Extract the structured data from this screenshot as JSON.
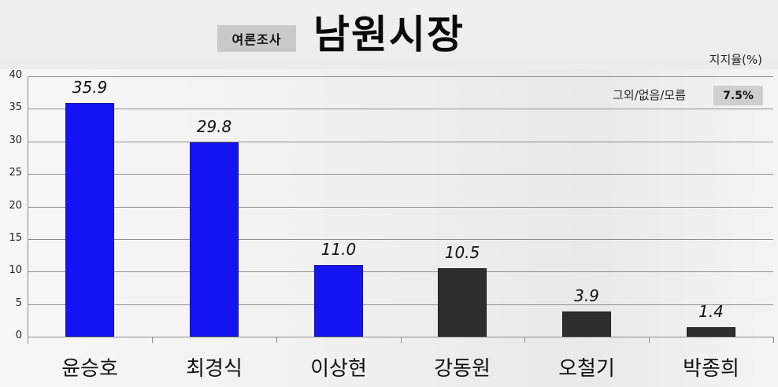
{
  "header": {
    "tag": "여론조사",
    "title": "남원시장"
  },
  "unit_label": "지지율(%)",
  "others": {
    "label": "그외/없음/모름",
    "value": "7.5%"
  },
  "colors": {
    "highlight_bar": "#1414f2",
    "other_bar": "#2e2e2e",
    "grid": "#8e8e8e"
  },
  "chart_data": {
    "type": "bar",
    "title": "남원시장",
    "subtitle": "여론조사",
    "xlabel": "",
    "ylabel": "지지율(%)",
    "ylim": [
      0,
      40
    ],
    "yticks": [
      "0",
      "5",
      "10",
      "15",
      "20",
      "25",
      "30",
      "35",
      "40"
    ],
    "grid": true,
    "legend": null,
    "categories": [
      "윤승호",
      "최경식",
      "이상현",
      "강동원",
      "오철기",
      "박종희"
    ],
    "values": [
      35.9,
      29.8,
      11.0,
      10.5,
      3.9,
      1.4
    ],
    "value_labels": [
      "35.9",
      "29.8",
      "11.0",
      "10.5",
      "3.9",
      "1.4"
    ],
    "bar_colors": [
      "#1414f2",
      "#1414f2",
      "#1414f2",
      "#2e2e2e",
      "#2e2e2e",
      "#2e2e2e"
    ],
    "annotations": [
      {
        "text": "그외/없음/모름",
        "value": "7.5%"
      }
    ]
  }
}
